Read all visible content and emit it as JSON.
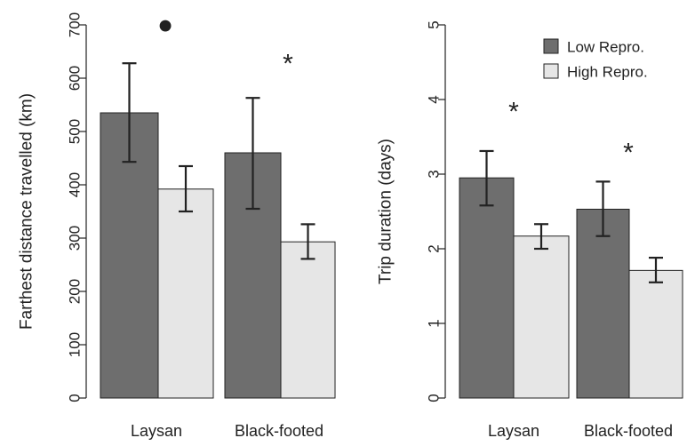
{
  "colors": {
    "low": "#6e6e6e",
    "high": "#e6e6e6",
    "stroke": "#222222",
    "axis": "#222222"
  },
  "chart_data": [
    {
      "type": "bar",
      "ylabel": "Farthest distance travelled (km)",
      "ylim": [
        0,
        700
      ],
      "yticks": [
        "0",
        "100",
        "200",
        "300",
        "400",
        "500",
        "600",
        "700"
      ],
      "categories": [
        "Laysan",
        "Black-footed"
      ],
      "series": [
        {
          "key": "low",
          "values": [
            535,
            460
          ],
          "err_low": [
            443,
            355
          ],
          "err_high": [
            628,
            563
          ]
        },
        {
          "key": "high",
          "values": [
            392,
            293
          ],
          "err_low": [
            350,
            261
          ],
          "err_high": [
            435,
            326
          ]
        }
      ],
      "annotations": [
        {
          "category": 0,
          "text": "●",
          "y": 700
        },
        {
          "category": 1,
          "text": "*",
          "y": 650
        }
      ]
    },
    {
      "type": "bar",
      "ylabel": "Trip duration (days)",
      "ylim": [
        0,
        5
      ],
      "yticks": [
        "0",
        "1",
        "2",
        "3",
        "4",
        "5"
      ],
      "categories": [
        "Laysan",
        "Black-footed"
      ],
      "legend": {
        "placement": "top-right",
        "entries": [
          "Low Repro.",
          "High Repro."
        ]
      },
      "series": [
        {
          "name": "Low Repro.",
          "key": "low",
          "values": [
            2.95,
            2.53
          ],
          "err_low": [
            2.58,
            2.17
          ],
          "err_high": [
            3.31,
            2.9
          ]
        },
        {
          "name": "High Repro.",
          "key": "high",
          "values": [
            2.17,
            1.71
          ],
          "err_low": [
            2.0,
            1.55
          ],
          "err_high": [
            2.33,
            1.88
          ]
        }
      ],
      "annotations": [
        {
          "category": 0,
          "text": "*",
          "y": 4.0
        },
        {
          "category": 1,
          "text": "*",
          "y": 3.45
        }
      ]
    }
  ]
}
